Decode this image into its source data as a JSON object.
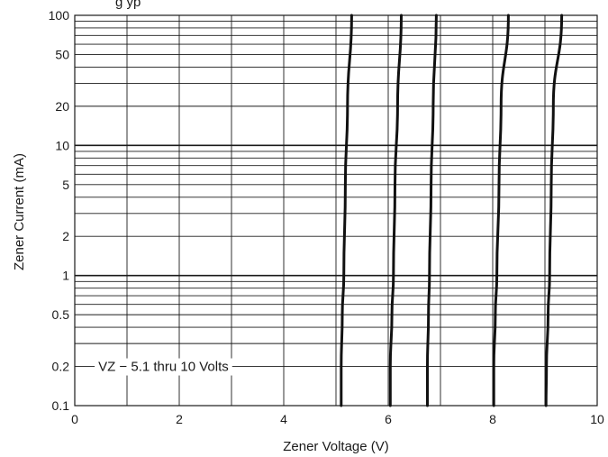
{
  "chart_data": {
    "type": "line",
    "title": "",
    "title_fragment": "g    yp",
    "xlabel": "Zener Voltage (V)",
    "ylabel": "Zener Current (mA)",
    "xlim": [
      0,
      10
    ],
    "ylim": [
      0.1,
      100
    ],
    "yscale": "log",
    "grid": true,
    "x_ticks": [
      0,
      2,
      4,
      6,
      8,
      10
    ],
    "x_tick_labels": [
      "0",
      "2",
      "4",
      "6",
      "8",
      "10"
    ],
    "x_minor_gridlines": [
      1,
      3,
      5,
      7,
      9
    ],
    "y_ticks": [
      0.1,
      0.2,
      0.5,
      1,
      2,
      5,
      10,
      20,
      50,
      100
    ],
    "y_tick_labels": [
      "0.1",
      "0.2",
      "0.5",
      "1",
      "2",
      "5",
      "10",
      "20",
      "50",
      "100"
    ],
    "annotation": "VZ − 5.1 thru 10 Volts",
    "line_color": "#111111",
    "grid_color": "#1a1a1a",
    "series": [
      {
        "x": [
          5.1,
          5.1,
          5.12,
          5.15,
          5.18,
          5.22,
          5.3
        ],
        "y": [
          0.1,
          0.2,
          0.5,
          1,
          5,
          20,
          100
        ]
      },
      {
        "x": [
          6.04,
          6.04,
          6.07,
          6.1,
          6.13,
          6.18,
          6.25
        ],
        "y": [
          0.1,
          0.2,
          0.5,
          1,
          5,
          20,
          100
        ]
      },
      {
        "x": [
          6.75,
          6.75,
          6.77,
          6.79,
          6.82,
          6.86,
          6.92
        ],
        "y": [
          0.1,
          0.2,
          0.5,
          1,
          5,
          20,
          100
        ]
      },
      {
        "x": [
          8.02,
          8.02,
          8.05,
          8.08,
          8.12,
          8.16,
          8.3
        ],
        "y": [
          0.1,
          0.2,
          0.5,
          1,
          5,
          20,
          100
        ]
      },
      {
        "x": [
          9.02,
          9.03,
          9.06,
          9.09,
          9.12,
          9.16,
          9.32
        ],
        "y": [
          0.1,
          0.2,
          0.5,
          1,
          5,
          20,
          100
        ]
      }
    ]
  }
}
